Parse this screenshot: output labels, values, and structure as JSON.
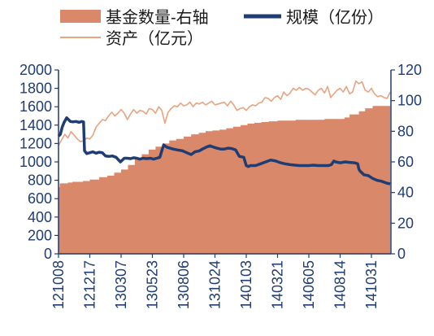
{
  "chart_data": {
    "type": "area",
    "title": "",
    "colors": {
      "fund_count": "#D9896A",
      "scale": "#1F3C73",
      "assets": "#E8A37F",
      "axis_text": "#1F3C73"
    },
    "legend": [
      {
        "key": "fund_count",
        "label": "基金数量-右轴",
        "style": "area-swatch"
      },
      {
        "key": "scale",
        "label": "规模（亿份）",
        "style": "thick-line"
      },
      {
        "key": "assets",
        "label": "资产（亿元）",
        "style": "thin-line"
      }
    ],
    "legend_position": "top",
    "x_tick_labels": [
      "121008",
      "121217",
      "130307",
      "130523",
      "130806",
      "131024",
      "140103",
      "140321",
      "140605",
      "140814",
      "141031"
    ],
    "left_axis": {
      "ylim": [
        0,
        2000
      ],
      "ticks": [
        "0",
        "200",
        "400",
        "600",
        "800",
        "1000",
        "1200",
        "1400",
        "1600",
        "1800",
        "2000"
      ]
    },
    "right_axis": {
      "ylim": [
        0,
        120
      ],
      "ticks": [
        "0",
        "20",
        "40",
        "60",
        "80",
        "100",
        "120"
      ]
    },
    "grid": false,
    "series": [
      {
        "key": "fund_count",
        "name": "基金数量-右轴",
        "type": "area",
        "axis": "right",
        "x": [
          0,
          0.04,
          0.04,
          0.3,
          0.3,
          0.44,
          0.44,
          0.78,
          0.78,
          1.0,
          1.0,
          1.3,
          1.3,
          1.56,
          1.56,
          1.78,
          1.78,
          2.0,
          2.0,
          2.22,
          2.22,
          2.44,
          2.44,
          2.66,
          2.66,
          2.88,
          2.88,
          3.1,
          3.1,
          3.32,
          3.32,
          3.54,
          3.54,
          3.76,
          3.76,
          4.0,
          4.0,
          4.24,
          4.24,
          4.48,
          4.48,
          4.7,
          4.7,
          4.92,
          4.92,
          5.14,
          5.14,
          5.36,
          5.36,
          5.58,
          5.58,
          5.82,
          5.82,
          6.04,
          6.04,
          6.26,
          6.26,
          6.48,
          6.48,
          6.72,
          6.72,
          7.0,
          7.0,
          7.58,
          7.58,
          8.5,
          8.5,
          9.14,
          9.14,
          9.3,
          9.3,
          9.6,
          9.6,
          9.8,
          9.8,
          10.04,
          10.04,
          10.6
        ],
        "values": [
          43.5,
          43.5,
          46,
          46,
          46.5,
          46.5,
          47,
          47,
          47.5,
          47.5,
          48.5,
          48.5,
          50,
          50,
          51,
          51,
          53,
          53,
          55,
          55,
          58,
          58,
          62,
          62,
          65,
          65,
          68,
          68,
          70,
          70,
          72,
          72,
          74,
          74,
          75,
          75,
          76.5,
          76.5,
          78,
          78,
          79,
          79,
          80,
          80,
          80.5,
          80.5,
          81,
          81,
          82,
          82,
          83,
          83,
          84,
          84,
          85,
          85,
          85.5,
          85.5,
          86,
          86,
          86.5,
          86.5,
          87,
          87,
          87.5,
          87.5,
          88,
          88,
          89,
          89,
          91,
          91,
          93,
          93,
          95,
          95,
          96.5,
          96.5
        ]
      },
      {
        "key": "scale",
        "name": "规模（亿份）",
        "type": "line",
        "axis": "left",
        "x": [
          0,
          0.06,
          0.12,
          0.18,
          0.26,
          0.32,
          0.38,
          0.46,
          0.56,
          0.66,
          0.74,
          0.8,
          0.83,
          0.9,
          1.0,
          1.1,
          1.2,
          1.3,
          1.4,
          1.5,
          1.62,
          1.72,
          1.84,
          1.98,
          2.1,
          2.2,
          2.3,
          2.4,
          2.5,
          2.6,
          2.7,
          2.82,
          2.94,
          3.04,
          3.14,
          3.24,
          3.3,
          3.36,
          3.46,
          3.56,
          3.66,
          3.8,
          3.96,
          4.1,
          4.24,
          4.36,
          4.5,
          4.6,
          4.72,
          4.84,
          4.96,
          5.06,
          5.18,
          5.3,
          5.42,
          5.54,
          5.66,
          5.78,
          5.92,
          6.0,
          6.06,
          6.14,
          6.3,
          6.46,
          6.62,
          6.78,
          6.94,
          7.1,
          7.24,
          7.4,
          7.56,
          7.7,
          7.86,
          8.0,
          8.14,
          8.3,
          8.46,
          8.62,
          8.72,
          8.8,
          8.86,
          9.0,
          9.16,
          9.3,
          9.46,
          9.56,
          9.6,
          9.64,
          9.76,
          9.9,
          10.04,
          10.18,
          10.32,
          10.48,
          10.6
        ],
        "values": [
          1280,
          1300,
          1380,
          1430,
          1480,
          1460,
          1440,
          1435,
          1440,
          1430,
          1440,
          1435,
          1120,
          1090,
          1100,
          1110,
          1095,
          1105,
          1100,
          1065,
          1060,
          1065,
          1050,
          1000,
          1040,
          1040,
          1035,
          1045,
          1040,
          1030,
          1040,
          1035,
          1040,
          1030,
          1040,
          1050,
          1120,
          1185,
          1160,
          1150,
          1140,
          1130,
          1120,
          1100,
          1080,
          1110,
          1120,
          1140,
          1160,
          1175,
          1160,
          1150,
          1140,
          1140,
          1150,
          1145,
          1130,
          1060,
          1050,
          960,
          950,
          960,
          960,
          980,
          1000,
          1020,
          1010,
          990,
          980,
          970,
          965,
          960,
          960,
          960,
          965,
          960,
          960,
          960,
          970,
          1010,
          1000,
          990,
          1000,
          995,
          990,
          980,
          920,
          900,
          860,
          850,
          820,
          800,
          790,
          770,
          760
        ]
      },
      {
        "key": "assets",
        "name": "资产（亿元）",
        "type": "line",
        "axis": "left",
        "x": [
          0,
          0.1,
          0.2,
          0.3,
          0.4,
          0.5,
          0.6,
          0.7,
          0.8,
          0.9,
          1.0,
          1.1,
          1.2,
          1.3,
          1.4,
          1.5,
          1.6,
          1.7,
          1.8,
          1.9,
          2.0,
          2.1,
          2.2,
          2.3,
          2.4,
          2.5,
          2.6,
          2.7,
          2.8,
          2.9,
          3.0,
          3.1,
          3.2,
          3.3,
          3.4,
          3.5,
          3.6,
          3.7,
          3.8,
          3.9,
          4.0,
          4.1,
          4.2,
          4.3,
          4.4,
          4.5,
          4.6,
          4.7,
          4.8,
          4.9,
          5.0,
          5.1,
          5.2,
          5.3,
          5.4,
          5.5,
          5.6,
          5.7,
          5.8,
          5.9,
          6.0,
          6.1,
          6.2,
          6.3,
          6.4,
          6.5,
          6.6,
          6.7,
          6.8,
          6.9,
          7.0,
          7.1,
          7.2,
          7.3,
          7.4,
          7.5,
          7.6,
          7.7,
          7.8,
          7.9,
          8.0,
          8.1,
          8.2,
          8.3,
          8.4,
          8.5,
          8.6,
          8.7,
          8.8,
          8.9,
          9.0,
          9.1,
          9.2,
          9.3,
          9.4,
          9.5,
          9.6,
          9.7,
          9.8,
          9.9,
          10.0,
          10.1,
          10.2,
          10.3,
          10.4,
          10.5,
          10.6
        ],
        "values": [
          1180,
          1240,
          1300,
          1260,
          1330,
          1290,
          1250,
          1220,
          1230,
          1260,
          1250,
          1290,
          1380,
          1420,
          1460,
          1450,
          1500,
          1540,
          1500,
          1530,
          1570,
          1530,
          1460,
          1520,
          1570,
          1530,
          1560,
          1550,
          1520,
          1580,
          1570,
          1530,
          1600,
          1560,
          1420,
          1540,
          1580,
          1610,
          1600,
          1640,
          1610,
          1620,
          1650,
          1600,
          1640,
          1630,
          1650,
          1620,
          1640,
          1660,
          1620,
          1630,
          1640,
          1650,
          1610,
          1660,
          1620,
          1560,
          1580,
          1590,
          1560,
          1600,
          1620,
          1610,
          1640,
          1650,
          1700,
          1690,
          1660,
          1700,
          1720,
          1680,
          1760,
          1720,
          1750,
          1800,
          1780,
          1810,
          1780,
          1800,
          1790,
          1760,
          1730,
          1780,
          1800,
          1750,
          1820,
          1700,
          1740,
          1780,
          1800,
          1760,
          1820,
          1740,
          1760,
          1880,
          1850,
          1870,
          1780,
          1760,
          1800,
          1740,
          1710,
          1720,
          1700,
          1690,
          1760
        ]
      }
    ]
  }
}
